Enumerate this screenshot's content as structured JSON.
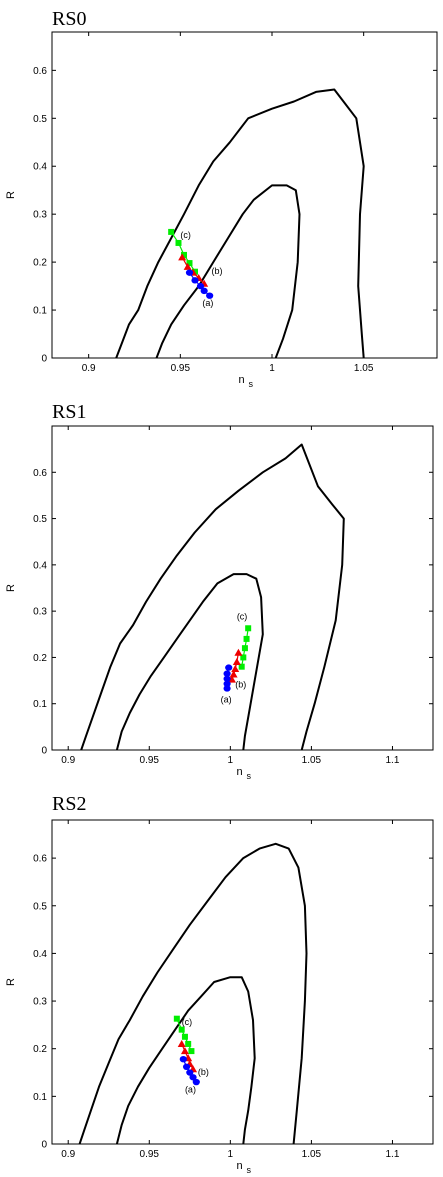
{
  "chart_data": [
    {
      "type": "line",
      "title": "RS0",
      "xlabel": "n",
      "xlabel_sub": "s",
      "ylabel": "R",
      "xlim": [
        0.88,
        1.09
      ],
      "ylim": [
        0,
        0.68
      ],
      "xticks": [
        0.9,
        0.95,
        1,
        1.05
      ],
      "xtick_labels": [
        "0.9",
        "0.95",
        "1",
        "1.05"
      ],
      "yticks": [
        0,
        0.1,
        0.2,
        0.3,
        0.4,
        0.5,
        0.6
      ],
      "ytick_labels": [
        "0",
        "0.1",
        "0.2",
        "0.3",
        "0.4",
        "0.5",
        "0.6"
      ],
      "grid": false,
      "contours": [
        {
          "x": [
            0.915,
            0.918,
            0.922,
            0.927,
            0.932,
            0.938,
            0.945,
            0.952,
            0.96,
            0.968,
            0.977,
            0.987,
            1.0,
            1.012,
            1.024,
            1.034,
            1.04,
            1.046,
            1.05,
            1.048,
            1.047,
            1.049,
            1.05
          ],
          "y": [
            0,
            0.03,
            0.07,
            0.1,
            0.15,
            0.2,
            0.25,
            0.3,
            0.36,
            0.41,
            0.45,
            0.5,
            0.52,
            0.535,
            0.555,
            0.56,
            0.53,
            0.5,
            0.4,
            0.3,
            0.15,
            0.05,
            0
          ]
        },
        {
          "x": [
            0.937,
            0.94,
            0.945,
            0.952,
            0.96,
            0.968,
            0.976,
            0.984,
            0.99,
            1.0,
            1.008,
            1.013,
            1.015,
            1.014,
            1.011,
            1.006,
            1.002
          ],
          "y": [
            0,
            0.03,
            0.07,
            0.11,
            0.15,
            0.2,
            0.25,
            0.3,
            0.33,
            0.36,
            0.36,
            0.35,
            0.3,
            0.2,
            0.1,
            0.04,
            0
          ]
        }
      ],
      "series": [
        {
          "marker": "square",
          "color": "#00ee00",
          "x": [
            0.945,
            0.949,
            0.952,
            0.955,
            0.958
          ],
          "y": [
            0.263,
            0.24,
            0.215,
            0.198,
            0.18
          ]
        },
        {
          "marker": "triangle",
          "color": "#ee0000",
          "x": [
            0.951,
            0.954,
            0.957,
            0.96,
            0.963
          ],
          "y": [
            0.21,
            0.19,
            0.178,
            0.167,
            0.155
          ]
        },
        {
          "marker": "circle",
          "color": "#0000ff",
          "x": [
            0.955,
            0.958,
            0.961,
            0.963,
            0.966
          ],
          "y": [
            0.178,
            0.162,
            0.15,
            0.14,
            0.13
          ]
        }
      ],
      "annotations": [
        {
          "text": "(c)",
          "x": 0.95,
          "y": 0.25
        },
        {
          "text": "(b)",
          "x": 0.967,
          "y": 0.175
        },
        {
          "text": "(a)",
          "x": 0.962,
          "y": 0.108
        }
      ]
    },
    {
      "type": "line",
      "title": "RS1",
      "xlabel": "n",
      "xlabel_sub": "s",
      "ylabel": "R",
      "xlim": [
        0.89,
        1.125
      ],
      "ylim": [
        0,
        0.7
      ],
      "xticks": [
        0.9,
        0.95,
        1,
        1.05,
        1.1
      ],
      "xtick_labels": [
        "0.9",
        "0.95",
        "1",
        "1.05",
        "1.1"
      ],
      "yticks": [
        0,
        0.1,
        0.2,
        0.3,
        0.4,
        0.5,
        0.6
      ],
      "ytick_labels": [
        "0",
        "0.1",
        "0.2",
        "0.3",
        "0.4",
        "0.5",
        "0.6"
      ],
      "grid": false,
      "contours": [
        {
          "x": [
            0.908,
            0.911,
            0.915,
            0.92,
            0.926,
            0.932,
            0.94,
            0.948,
            0.957,
            0.967,
            0.978,
            0.991,
            1.005,
            1.02,
            1.034,
            1.044,
            1.054,
            1.063,
            1.07,
            1.069,
            1.065,
            1.058,
            1.052,
            1.047,
            1.044
          ],
          "y": [
            0,
            0.03,
            0.07,
            0.12,
            0.18,
            0.23,
            0.27,
            0.32,
            0.37,
            0.42,
            0.47,
            0.52,
            0.56,
            0.6,
            0.63,
            0.66,
            0.57,
            0.53,
            0.5,
            0.4,
            0.28,
            0.18,
            0.1,
            0.04,
            0
          ]
        },
        {
          "x": [
            0.93,
            0.933,
            0.938,
            0.944,
            0.951,
            0.959,
            0.967,
            0.975,
            0.983,
            0.992,
            1.002,
            1.01,
            1.016,
            1.019,
            1.02,
            1.016,
            1.012,
            1.009,
            1.008
          ],
          "y": [
            0,
            0.04,
            0.08,
            0.12,
            0.16,
            0.2,
            0.24,
            0.28,
            0.32,
            0.36,
            0.38,
            0.38,
            0.37,
            0.33,
            0.25,
            0.17,
            0.09,
            0.03,
            0
          ]
        }
      ],
      "series": [
        {
          "marker": "square",
          "color": "#00ee00",
          "x": [
            1.011,
            1.01,
            1.009,
            1.008,
            1.007
          ],
          "y": [
            0.263,
            0.24,
            0.22,
            0.2,
            0.18
          ]
        },
        {
          "marker": "triangle",
          "color": "#ee0000",
          "x": [
            1.005,
            1.004,
            1.003,
            1.002,
            1.001
          ],
          "y": [
            0.21,
            0.19,
            0.175,
            0.163,
            0.152
          ]
        },
        {
          "marker": "circle",
          "color": "#0000ff",
          "x": [
            0.999,
            0.998,
            0.998,
            0.998,
            0.998
          ],
          "y": [
            0.178,
            0.165,
            0.154,
            0.143,
            0.133
          ]
        }
      ],
      "annotations": [
        {
          "text": "(c)",
          "x": 1.004,
          "y": 0.282
        },
        {
          "text": "(b)",
          "x": 1.003,
          "y": 0.135
        },
        {
          "text": "(a)",
          "x": 0.994,
          "y": 0.103
        }
      ]
    },
    {
      "type": "line",
      "title": "RS2",
      "xlabel": "n",
      "xlabel_sub": "s",
      "ylabel": "R",
      "xlim": [
        0.89,
        1.125
      ],
      "ylim": [
        0,
        0.68
      ],
      "xticks": [
        0.9,
        0.95,
        1,
        1.05,
        1.1
      ],
      "xtick_labels": [
        "0.9",
        "0.95",
        "1",
        "1.05",
        "1.1"
      ],
      "yticks": [
        0,
        0.1,
        0.2,
        0.3,
        0.4,
        0.5,
        0.6
      ],
      "ytick_labels": [
        "0",
        "0.1",
        "0.2",
        "0.3",
        "0.4",
        "0.5",
        "0.6"
      ],
      "grid": false,
      "contours": [
        {
          "x": [
            0.907,
            0.91,
            0.914,
            0.919,
            0.925,
            0.931,
            0.938,
            0.946,
            0.955,
            0.965,
            0.975,
            0.986,
            0.997,
            1.008,
            1.018,
            1.028,
            1.036,
            1.042,
            1.046,
            1.047,
            1.046,
            1.044,
            1.041,
            1.039
          ],
          "y": [
            0,
            0.03,
            0.07,
            0.12,
            0.17,
            0.22,
            0.26,
            0.31,
            0.36,
            0.41,
            0.46,
            0.51,
            0.56,
            0.6,
            0.62,
            0.63,
            0.62,
            0.58,
            0.5,
            0.4,
            0.3,
            0.18,
            0.07,
            0
          ]
        },
        {
          "x": [
            0.93,
            0.933,
            0.937,
            0.943,
            0.95,
            0.958,
            0.966,
            0.974,
            0.982,
            0.99,
            1.0,
            1.007,
            1.011,
            1.014,
            1.015,
            1.013,
            1.011,
            1.009,
            1.008
          ],
          "y": [
            0,
            0.04,
            0.08,
            0.12,
            0.16,
            0.2,
            0.24,
            0.28,
            0.31,
            0.34,
            0.35,
            0.35,
            0.32,
            0.26,
            0.18,
            0.12,
            0.07,
            0.03,
            0
          ]
        }
      ],
      "series": [
        {
          "marker": "square",
          "color": "#00ee00",
          "x": [
            0.967,
            0.97,
            0.972,
            0.974,
            0.976
          ],
          "y": [
            0.263,
            0.24,
            0.225,
            0.21,
            0.195
          ]
        },
        {
          "marker": "triangle",
          "color": "#ee0000",
          "x": [
            0.97,
            0.972,
            0.974,
            0.975,
            0.977
          ],
          "y": [
            0.21,
            0.195,
            0.18,
            0.168,
            0.157
          ]
        },
        {
          "marker": "circle",
          "color": "#0000ff",
          "x": [
            0.971,
            0.973,
            0.975,
            0.977,
            0.979
          ],
          "y": [
            0.178,
            0.162,
            0.15,
            0.14,
            0.13
          ]
        }
      ],
      "annotations": [
        {
          "text": "(c)",
          "x": 0.97,
          "y": 0.25
        },
        {
          "text": "(b)",
          "x": 0.98,
          "y": 0.145
        },
        {
          "text": "(a)",
          "x": 0.972,
          "y": 0.108
        }
      ]
    }
  ]
}
